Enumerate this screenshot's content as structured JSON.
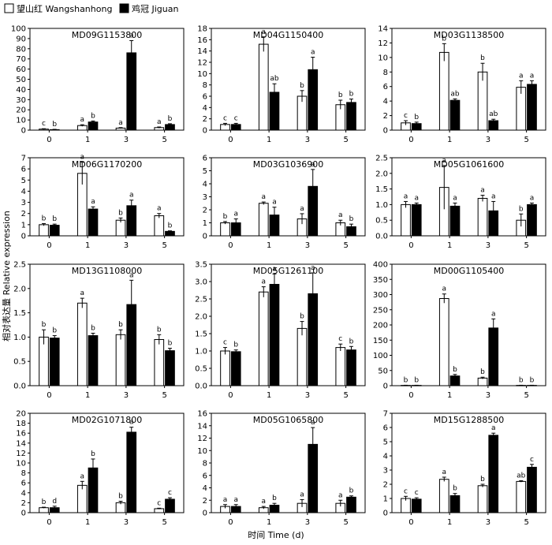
{
  "legend": [
    {
      "label": "望山红 Wangshanhong",
      "color": "#ffffff"
    },
    {
      "label": "鸡冠 Jiguan",
      "color": "#000000"
    }
  ],
  "ylabel": "相对表达量 Relative expression",
  "xlabel": "时间 Time (d)",
  "chart_data": [
    {
      "type": "bar",
      "title": "MD09G1153800",
      "categories": [
        "0",
        "1",
        "3",
        "5"
      ],
      "ylim": [
        0,
        100
      ],
      "yticks": [
        0,
        10,
        20,
        30,
        40,
        50,
        60,
        70,
        80,
        90,
        100
      ],
      "series": [
        {
          "name": "望山红 Wangshanhong",
          "values": [
            1,
            4.5,
            2,
            2.5
          ],
          "errors": [
            0.4,
            0.8,
            0.5,
            0.6
          ],
          "letters": [
            "c",
            "a",
            "a",
            "a"
          ]
        },
        {
          "name": "鸡冠 Jiguan",
          "values": [
            0.5,
            8,
            76,
            5.5
          ],
          "errors": [
            0.3,
            1,
            12,
            0.8
          ],
          "letters": [
            "b",
            "b",
            "a",
            "b"
          ]
        }
      ]
    },
    {
      "type": "bar",
      "title": "MD04G1150400",
      "categories": [
        "0",
        "1",
        "3",
        "5"
      ],
      "ylim": [
        0,
        18
      ],
      "yticks": [
        0,
        2,
        4,
        6,
        8,
        10,
        12,
        14,
        16,
        18
      ],
      "series": [
        {
          "name": "望山红 Wangshanhong",
          "values": [
            1,
            15.2,
            6,
            4.5
          ],
          "errors": [
            0.2,
            1.3,
            1,
            0.8
          ],
          "letters": [
            "c",
            "a",
            "b",
            "b"
          ]
        },
        {
          "name": "鸡冠 Jiguan",
          "values": [
            1,
            6.7,
            10.7,
            4.9
          ],
          "errors": [
            0.2,
            1.5,
            2.2,
            0.6
          ],
          "letters": [
            "c",
            "ab",
            "a",
            "b"
          ]
        }
      ]
    },
    {
      "type": "bar",
      "title": "MD03G1138500",
      "categories": [
        "0",
        "1",
        "3",
        "5"
      ],
      "ylim": [
        0,
        14
      ],
      "yticks": [
        0,
        2,
        4,
        6,
        8,
        10,
        12,
        14
      ],
      "series": [
        {
          "name": "望山红 Wangshanhong",
          "values": [
            1,
            10.7,
            8,
            5.9
          ],
          "errors": [
            0.3,
            1.2,
            1.2,
            0.9
          ],
          "letters": [
            "c",
            "b",
            "b",
            "a"
          ]
        },
        {
          "name": "鸡冠 Jiguan",
          "values": [
            0.9,
            4.1,
            1.3,
            6.3
          ],
          "errors": [
            0.2,
            0.2,
            0.2,
            0.5
          ],
          "letters": [
            "b",
            "ab",
            "ab",
            "a"
          ]
        }
      ]
    },
    {
      "type": "bar",
      "title": "MD06G1170200",
      "categories": [
        "0",
        "1",
        "3",
        "5"
      ],
      "ylim": [
        0,
        7
      ],
      "yticks": [
        0,
        1,
        2,
        3,
        4,
        5,
        6,
        7
      ],
      "series": [
        {
          "name": "望山红 Wangshanhong",
          "values": [
            1,
            5.6,
            1.4,
            1.8
          ],
          "errors": [
            0.1,
            1,
            0.2,
            0.2
          ],
          "letters": [
            "b",
            "a",
            "b",
            "a"
          ]
        },
        {
          "name": "鸡冠 Jiguan",
          "values": [
            0.95,
            2.4,
            2.7,
            0.4
          ],
          "errors": [
            0.1,
            0.2,
            0.5,
            0.05
          ],
          "letters": [
            "b",
            "a",
            "a",
            "b"
          ]
        }
      ]
    },
    {
      "type": "bar",
      "title": "MD03G1036900",
      "categories": [
        "0",
        "1",
        "3",
        "5"
      ],
      "ylim": [
        0,
        6
      ],
      "yticks": [
        0,
        1,
        2,
        3,
        4,
        5,
        6
      ],
      "series": [
        {
          "name": "望山红 Wangshanhong",
          "values": [
            1,
            2.5,
            1.3,
            1
          ],
          "errors": [
            0.1,
            0.1,
            0.4,
            0.2
          ],
          "letters": [
            "b",
            "a",
            "a",
            "a"
          ]
        },
        {
          "name": "鸡冠 Jiguan",
          "values": [
            1,
            1.6,
            3.8,
            0.7
          ],
          "errors": [
            0.3,
            0.6,
            1.3,
            0.2
          ],
          "letters": [
            "a",
            "a",
            "a",
            "b"
          ]
        }
      ]
    },
    {
      "type": "bar",
      "title": "MD05G1061600",
      "categories": [
        "0",
        "1",
        "3",
        "5"
      ],
      "ylim": [
        0,
        2.5
      ],
      "yticks": [
        0,
        0.5,
        1.0,
        1.5,
        2.0,
        2.5
      ],
      "series": [
        {
          "name": "望山红 Wangshanhong",
          "values": [
            1,
            1.55,
            1.2,
            0.5
          ],
          "errors": [
            0.1,
            0.7,
            0.1,
            0.2
          ],
          "letters": [
            "a",
            "a",
            "a",
            "b"
          ]
        },
        {
          "name": "鸡冠 Jiguan",
          "values": [
            1,
            0.95,
            0.8,
            1
          ],
          "errors": [
            0.05,
            0.1,
            0.3,
            0.05
          ],
          "letters": [
            "a",
            "a",
            "a",
            "a"
          ]
        }
      ]
    },
    {
      "type": "bar",
      "title": "MD13G1108000",
      "categories": [
        "0",
        "1",
        "3",
        "5"
      ],
      "ylim": [
        0,
        2.5
      ],
      "yticks": [
        0,
        0.5,
        1.0,
        1.5,
        2.0,
        2.5
      ],
      "series": [
        {
          "name": "望山红 Wangshanhong",
          "values": [
            1,
            1.7,
            1.05,
            0.95
          ],
          "errors": [
            0.15,
            0.1,
            0.1,
            0.1
          ],
          "letters": [
            "b",
            "a",
            "b",
            "b"
          ]
        },
        {
          "name": "鸡冠 Jiguan",
          "values": [
            0.98,
            1.03,
            1.67,
            0.72
          ],
          "errors": [
            0.05,
            0.05,
            0.5,
            0.05
          ],
          "letters": [
            "b",
            "b",
            "a",
            "b"
          ]
        }
      ]
    },
    {
      "type": "bar",
      "title": "MD05G1261100",
      "categories": [
        "0",
        "1",
        "3",
        "5"
      ],
      "ylim": [
        0,
        3.5
      ],
      "yticks": [
        0,
        0.5,
        1.0,
        1.5,
        2.0,
        2.5,
        3.0,
        3.5
      ],
      "series": [
        {
          "name": "望山红 Wangshanhong",
          "values": [
            1,
            2.7,
            1.65,
            1.1
          ],
          "errors": [
            0.1,
            0.15,
            0.2,
            0.1
          ],
          "letters": [
            "c",
            "a",
            "b",
            "c"
          ]
        },
        {
          "name": "鸡冠 Jiguan",
          "values": [
            0.98,
            2.92,
            2.65,
            1.03
          ],
          "errors": [
            0.05,
            0.3,
            0.6,
            0.1
          ],
          "letters": [
            "b",
            "a",
            "a",
            "b"
          ]
        }
      ]
    },
    {
      "type": "bar",
      "title": "MD00G1105400",
      "categories": [
        "0",
        "1",
        "3",
        "5"
      ],
      "ylim": [
        0,
        400
      ],
      "yticks": [
        0,
        50,
        100,
        150,
        200,
        250,
        300,
        350,
        400
      ],
      "series": [
        {
          "name": "望山红 Wangshanhong",
          "values": [
            1,
            287,
            25,
            1
          ],
          "errors": [
            0.5,
            15,
            3,
            0.5
          ],
          "letters": [
            "b",
            "a",
            "b",
            "b"
          ]
        },
        {
          "name": "鸡冠 Jiguan",
          "values": [
            1,
            32,
            190,
            1
          ],
          "errors": [
            0.5,
            5,
            30,
            0.5
          ],
          "letters": [
            "b",
            "b",
            "a",
            "b"
          ]
        }
      ]
    },
    {
      "type": "bar",
      "title": "MD02G1071800",
      "categories": [
        "0",
        "1",
        "3",
        "5"
      ],
      "ylim": [
        0,
        20
      ],
      "yticks": [
        0,
        2,
        4,
        6,
        8,
        10,
        12,
        14,
        16,
        18,
        20
      ],
      "series": [
        {
          "name": "望山红 Wangshanhong",
          "values": [
            1,
            5.5,
            2,
            0.8
          ],
          "errors": [
            0.1,
            0.8,
            0.3,
            0.1
          ],
          "letters": [
            "b",
            "a",
            "b",
            "c"
          ]
        },
        {
          "name": "鸡冠 Jiguan",
          "values": [
            1,
            9,
            16.2,
            2.7
          ],
          "errors": [
            0.3,
            1.8,
            1,
            0.3
          ],
          "letters": [
            "d",
            "b",
            "a",
            "c"
          ]
        }
      ]
    },
    {
      "type": "bar",
      "title": "MD05G1065800",
      "categories": [
        "0",
        "1",
        "3",
        "5"
      ],
      "ylim": [
        0,
        16
      ],
      "yticks": [
        0,
        2,
        4,
        6,
        8,
        10,
        12,
        14,
        16
      ],
      "series": [
        {
          "name": "望山红 Wangshanhong",
          "values": [
            1,
            0.8,
            1.5,
            1.5
          ],
          "errors": [
            0.3,
            0.2,
            0.6,
            0.5
          ],
          "letters": [
            "a",
            "a",
            "a",
            "a"
          ]
        },
        {
          "name": "鸡冠 Jiguan",
          "values": [
            1,
            1.2,
            11,
            2.5
          ],
          "errors": [
            0.3,
            0.3,
            2.7,
            0.2
          ],
          "letters": [
            "a",
            "b",
            "a",
            "b"
          ]
        }
      ]
    },
    {
      "type": "bar",
      "title": "MD15G1288500",
      "categories": [
        "0",
        "1",
        "3",
        "5"
      ],
      "ylim": [
        0,
        7
      ],
      "yticks": [
        0,
        1,
        2,
        3,
        4,
        5,
        6,
        7
      ],
      "series": [
        {
          "name": "望山红 Wangshanhong",
          "values": [
            1,
            2.35,
            1.9,
            2.2
          ],
          "errors": [
            0.15,
            0.15,
            0.1,
            0.05
          ],
          "letters": [
            "c",
            "a",
            "b",
            "ab"
          ]
        },
        {
          "name": "鸡冠 Jiguan",
          "values": [
            0.95,
            1.2,
            5.45,
            3.2
          ],
          "errors": [
            0.1,
            0.15,
            0.15,
            0.2
          ],
          "letters": [
            "c",
            "b",
            "a",
            "c"
          ]
        }
      ]
    }
  ]
}
